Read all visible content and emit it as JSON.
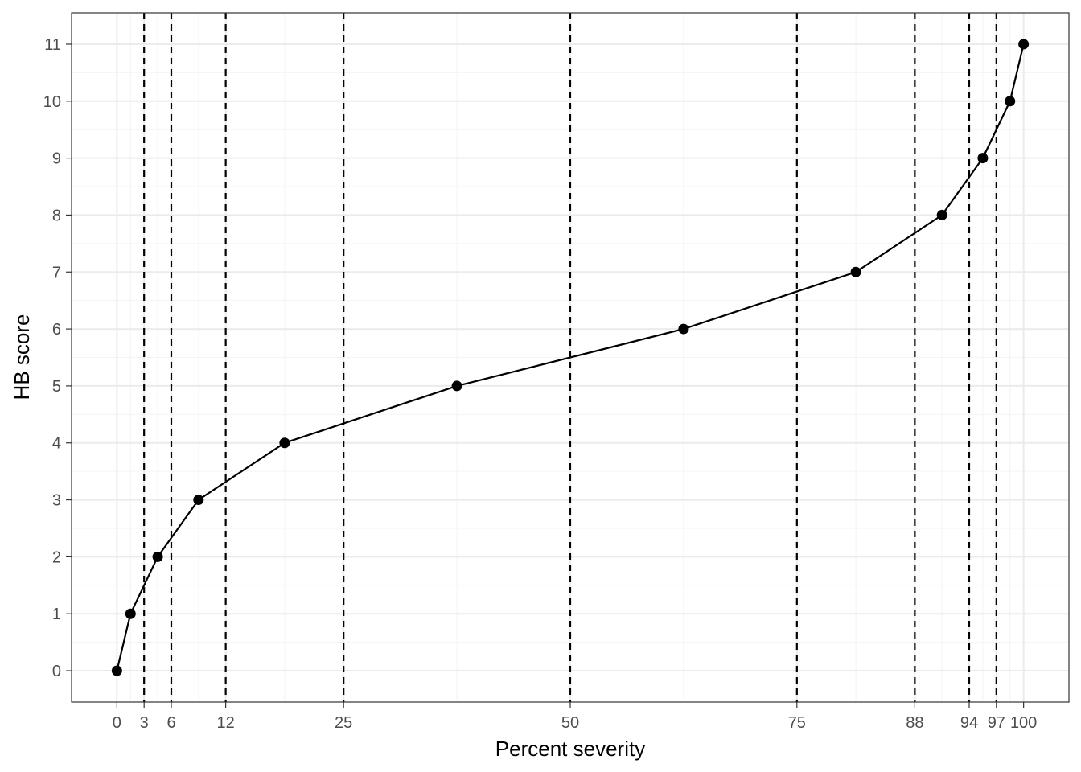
{
  "chart_data": {
    "type": "line",
    "title": "",
    "xlabel": "Percent severity",
    "ylabel": "HB score",
    "xlim": [
      -5,
      105
    ],
    "ylim": [
      -0.55,
      11.55
    ],
    "x_breaks": [
      0,
      3,
      6,
      12,
      25,
      50,
      75,
      88,
      94,
      97,
      100
    ],
    "x_tick_labels": [
      "0",
      "3",
      "6",
      "12",
      "25",
      "50",
      "75",
      "88",
      "94",
      "97",
      "100"
    ],
    "y_breaks": [
      0,
      1,
      2,
      3,
      4,
      5,
      6,
      7,
      8,
      9,
      10,
      11
    ],
    "y_tick_labels": [
      "0",
      "1",
      "2",
      "3",
      "4",
      "5",
      "6",
      "7",
      "8",
      "9",
      "10",
      "11"
    ],
    "vlines_dashed": [
      3,
      6,
      12,
      25,
      50,
      75,
      88,
      94,
      97
    ],
    "grid": true,
    "legend": "none",
    "series": [
      {
        "x": [
          0,
          1.5,
          4.5,
          9,
          18.5,
          37.5,
          62.5,
          81.5,
          91,
          95.5,
          98.5,
          100
        ],
        "y": [
          0,
          1,
          2,
          3,
          4,
          5,
          6,
          7,
          8,
          9,
          10,
          11
        ]
      }
    ],
    "colors": {
      "line": "#000000",
      "point": "#000000",
      "grid_major": "#ebebeb",
      "grid_minor": "#f4f4f4",
      "panel_border": "#333333",
      "vline": "#000000"
    }
  }
}
